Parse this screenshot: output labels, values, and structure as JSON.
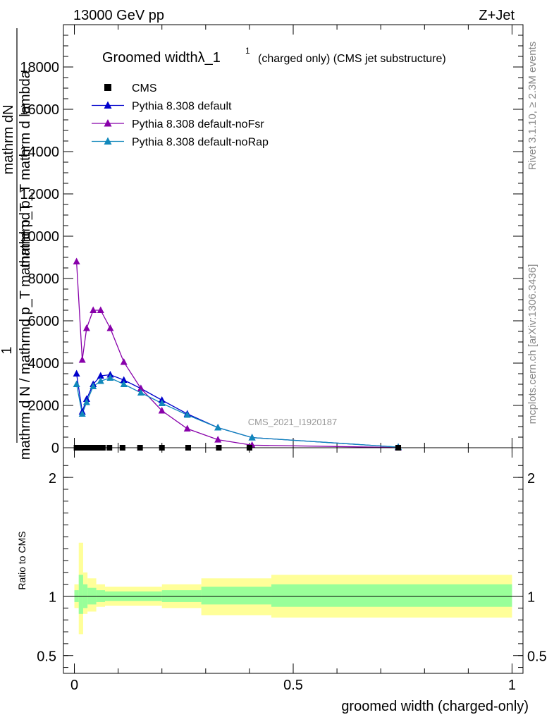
{
  "header": {
    "left": "13000 GeV pp",
    "right": "Z+Jet"
  },
  "side_labels": {
    "rivet": "Rivet 3.1.10, ≥ 2.3M events",
    "mcplots": "mcplots.cern.ch [arXiv:1306.3436]"
  },
  "watermark": "CMS_2021_I1920187",
  "colors": {
    "cms": "#000000",
    "default": "#0000cc",
    "noFsr": "#8800aa",
    "noRap": "#1188bb",
    "band_inner": "#99ff99",
    "band_outer": "#ffff99"
  },
  "chart_data": [
    {
      "type": "line",
      "title": "Groomed widthλ_1¹ (charged only) (CMS jet substructure)",
      "title_main": "Groomed widthλ_1",
      "title_sup": "1",
      "title_rest": "(charged only) (CMS jet substructure)",
      "ylabel_num_prefix": "1",
      "ylabel_num": "mathrm d²N",
      "ylabel_den": "mathrm d N / mathrmd p_T mathrmd p_T mathrm d lambda",
      "ylabel_lines": [
        "mathrm dN",
        "mathrmd p_T mathrm d lambda",
        "mathrm d N / mathrmd p_T mathrmd p_T"
      ],
      "xlim": [
        -0.025,
        1.025
      ],
      "ylim": [
        0,
        20000
      ],
      "y_ticks": [
        0,
        2000,
        4000,
        6000,
        8000,
        10000,
        12000,
        14000,
        16000,
        18000
      ],
      "y_tick_labels": [
        "0",
        "2000",
        "4000",
        "6000",
        "8000",
        "10000",
        "12000",
        "14000",
        "16000",
        "18000"
      ],
      "legend_position": "top-left",
      "series": [
        {
          "name": "CMS",
          "marker": "square",
          "x": [
            0.005,
            0.015,
            0.025,
            0.035,
            0.045,
            0.055,
            0.065,
            0.08,
            0.11,
            0.15,
            0.2,
            0.26,
            0.33,
            0.4,
            0.74
          ],
          "y": [
            0,
            0,
            0,
            0,
            0,
            0,
            0,
            0,
            0,
            0,
            0,
            0,
            0,
            0,
            0
          ]
        },
        {
          "name": "Pythia 8.308 default",
          "marker": "triangle",
          "x": [
            0.005,
            0.018,
            0.028,
            0.043,
            0.06,
            0.082,
            0.113,
            0.152,
            0.2,
            0.258,
            0.328,
            0.406,
            0.74
          ],
          "y": [
            3500,
            1700,
            2300,
            3000,
            3400,
            3450,
            3200,
            2800,
            2250,
            1600,
            950,
            480,
            30
          ]
        },
        {
          "name": "Pythia 8.308 default-noFsr",
          "marker": "triangle",
          "x": [
            0.005,
            0.018,
            0.028,
            0.043,
            0.06,
            0.082,
            0.113,
            0.152,
            0.2,
            0.258,
            0.328,
            0.406,
            0.74
          ],
          "y": [
            8800,
            4150,
            5650,
            6500,
            6500,
            5650,
            4050,
            2800,
            1750,
            900,
            380,
            120,
            10
          ]
        },
        {
          "name": "Pythia 8.308 default-noRap",
          "marker": "triangle",
          "x": [
            0.005,
            0.018,
            0.028,
            0.043,
            0.06,
            0.082,
            0.113,
            0.152,
            0.2,
            0.258,
            0.328,
            0.406,
            0.74
          ],
          "y": [
            3000,
            1600,
            2150,
            2900,
            3150,
            3300,
            3000,
            2600,
            2100,
            1550,
            950,
            480,
            30
          ]
        }
      ]
    },
    {
      "type": "area",
      "ylabel": "Ratio to CMS",
      "xlabel": "groomed width (charged-only)",
      "xlim": [
        -0.025,
        1.025
      ],
      "ylim": [
        0.35,
        2.25
      ],
      "y_ticks": [
        0.5,
        1,
        2
      ],
      "y_tick_labels": [
        "0.5",
        "1",
        "2"
      ],
      "x_ticks": [
        0,
        0.5,
        1
      ],
      "x_tick_labels": [
        "0",
        "0.5",
        "1"
      ],
      "reference_line": 1,
      "bins": [
        {
          "x0": 0.0,
          "x1": 0.01,
          "inner": [
            0.95,
            1.05
          ],
          "outer": [
            0.9,
            1.1
          ]
        },
        {
          "x0": 0.01,
          "x1": 0.02,
          "inner": [
            0.85,
            1.18
          ],
          "outer": [
            0.68,
            1.45
          ]
        },
        {
          "x0": 0.02,
          "x1": 0.03,
          "inner": [
            0.9,
            1.1
          ],
          "outer": [
            0.85,
            1.2
          ]
        },
        {
          "x0": 0.03,
          "x1": 0.05,
          "inner": [
            0.93,
            1.07
          ],
          "outer": [
            0.87,
            1.15
          ]
        },
        {
          "x0": 0.05,
          "x1": 0.07,
          "inner": [
            0.95,
            1.05
          ],
          "outer": [
            0.91,
            1.1
          ]
        },
        {
          "x0": 0.07,
          "x1": 0.2,
          "inner": [
            0.96,
            1.04
          ],
          "outer": [
            0.92,
            1.08
          ]
        },
        {
          "x0": 0.2,
          "x1": 0.29,
          "inner": [
            0.95,
            1.05
          ],
          "outer": [
            0.9,
            1.1
          ]
        },
        {
          "x0": 0.29,
          "x1": 0.45,
          "inner": [
            0.93,
            1.08
          ],
          "outer": [
            0.84,
            1.15
          ]
        },
        {
          "x0": 0.45,
          "x1": 1.0,
          "inner": [
            0.91,
            1.1
          ],
          "outer": [
            0.82,
            1.18
          ]
        }
      ]
    }
  ]
}
